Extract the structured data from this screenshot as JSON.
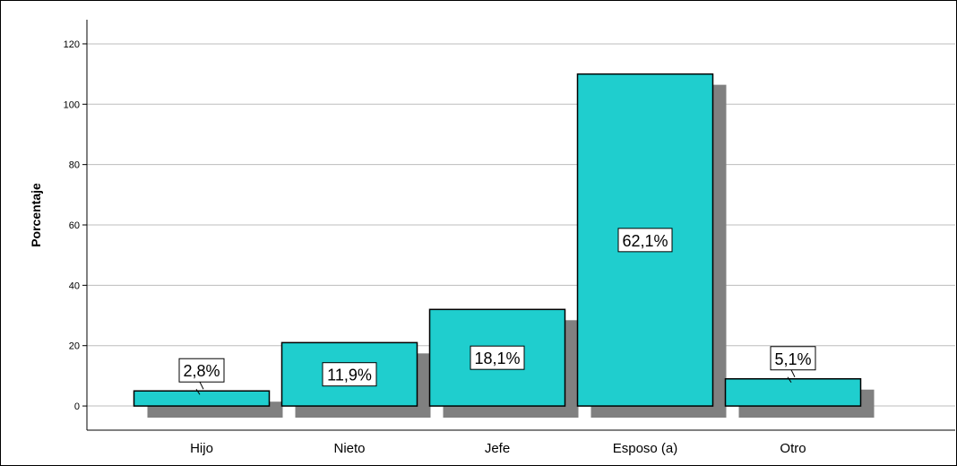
{
  "chart_data": {
    "type": "bar",
    "categories": [
      "Hijo",
      "Nieto",
      "Jefe",
      "Esposo (a)",
      "Otro"
    ],
    "values": [
      5,
      21,
      32,
      110,
      9
    ],
    "data_labels": [
      "2,8%",
      "11,9%",
      "18,1%",
      "62,1%",
      "5,1%"
    ],
    "ylabel": "Porcentaje",
    "ylim": [
      -8,
      128
    ],
    "yticks": [
      0,
      20,
      40,
      60,
      80,
      100,
      120
    ],
    "grid": true,
    "bar_color": "#1fcece",
    "shadow_color": "#808080",
    "grid_color": "#bdbdbd"
  }
}
